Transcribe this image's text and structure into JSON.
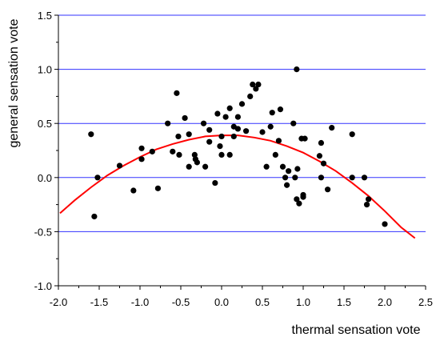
{
  "chart_data": {
    "type": "scatter",
    "title": "",
    "xlabel": "thermal sensation vote",
    "ylabel": "general sensation vote",
    "xlim": [
      -2.0,
      2.5
    ],
    "ylim": [
      -1.0,
      1.5
    ],
    "x_ticks": [
      "-2.0",
      "-1.5",
      "-1.0",
      "-0.5",
      "0.0",
      "0.5",
      "1.0",
      "1.5",
      "2.0",
      "2.5"
    ],
    "y_ticks": [
      "1.5",
      "1.0",
      "0.5",
      "0.0",
      "-0.5",
      "-1.0"
    ],
    "grid_horizontal": [
      1.5,
      1.0,
      0.5,
      0.0,
      -0.5
    ],
    "colors": {
      "points": "#000000",
      "fit_line": "#ff0000",
      "grid": "#3333ff",
      "axis": "#000000"
    },
    "series": [
      {
        "type": "scatter",
        "points": [
          [
            -1.6,
            0.4
          ],
          [
            -1.56,
            -0.36
          ],
          [
            -1.52,
            0.0
          ],
          [
            -1.25,
            0.11
          ],
          [
            -1.08,
            -0.12
          ],
          [
            -0.98,
            0.27
          ],
          [
            -0.98,
            0.17
          ],
          [
            -0.85,
            0.24
          ],
          [
            -0.78,
            -0.1
          ],
          [
            -0.66,
            0.5
          ],
          [
            -0.6,
            0.24
          ],
          [
            -0.55,
            0.78
          ],
          [
            -0.52,
            0.21
          ],
          [
            -0.53,
            0.38
          ],
          [
            -0.45,
            0.55
          ],
          [
            -0.4,
            0.1
          ],
          [
            -0.4,
            0.4
          ],
          [
            -0.33,
            0.21
          ],
          [
            -0.32,
            0.17
          ],
          [
            -0.3,
            0.14
          ],
          [
            -0.22,
            0.5
          ],
          [
            -0.2,
            0.1
          ],
          [
            -0.15,
            0.44
          ],
          [
            -0.15,
            0.33
          ],
          [
            -0.08,
            -0.05
          ],
          [
            -0.05,
            0.59
          ],
          [
            -0.02,
            0.29
          ],
          [
            0.0,
            0.21
          ],
          [
            0.0,
            0.38
          ],
          [
            0.05,
            0.56
          ],
          [
            0.1,
            0.64
          ],
          [
            0.1,
            0.21
          ],
          [
            0.15,
            0.47
          ],
          [
            0.15,
            0.38
          ],
          [
            0.2,
            0.56
          ],
          [
            0.2,
            0.45
          ],
          [
            0.25,
            0.68
          ],
          [
            0.3,
            0.43
          ],
          [
            0.35,
            0.75
          ],
          [
            0.38,
            0.86
          ],
          [
            0.42,
            0.82
          ],
          [
            0.45,
            0.86
          ],
          [
            0.5,
            0.42
          ],
          [
            0.55,
            0.1
          ],
          [
            0.6,
            0.47
          ],
          [
            0.62,
            0.6
          ],
          [
            0.66,
            0.21
          ],
          [
            0.7,
            0.34
          ],
          [
            0.72,
            0.63
          ],
          [
            0.75,
            0.1
          ],
          [
            0.78,
            0.0
          ],
          [
            0.8,
            -0.07
          ],
          [
            0.82,
            0.06
          ],
          [
            0.88,
            0.5
          ],
          [
            0.9,
            0.0
          ],
          [
            0.92,
            1.0
          ],
          [
            0.92,
            -0.2
          ],
          [
            0.93,
            0.08
          ],
          [
            0.95,
            -0.24
          ],
          [
            0.98,
            0.36
          ],
          [
            1.0,
            -0.16
          ],
          [
            1.0,
            -0.18
          ],
          [
            1.02,
            0.36
          ],
          [
            1.2,
            0.2
          ],
          [
            1.22,
            0.32
          ],
          [
            1.22,
            0.0
          ],
          [
            1.25,
            0.13
          ],
          [
            1.3,
            -0.11
          ],
          [
            1.35,
            0.46
          ],
          [
            1.6,
            0.4
          ],
          [
            1.6,
            0.0
          ],
          [
            1.75,
            0.0
          ],
          [
            1.78,
            -0.25
          ],
          [
            1.8,
            -0.2
          ],
          [
            2.0,
            -0.43
          ]
        ]
      },
      {
        "type": "line",
        "points": [
          [
            -1.98,
            -0.33
          ],
          [
            -1.8,
            -0.21
          ],
          [
            -1.6,
            -0.09
          ],
          [
            -1.4,
            0.02
          ],
          [
            -1.2,
            0.11
          ],
          [
            -1.0,
            0.19
          ],
          [
            -0.8,
            0.26
          ],
          [
            -0.6,
            0.31
          ],
          [
            -0.4,
            0.35
          ],
          [
            -0.2,
            0.38
          ],
          [
            0.0,
            0.39
          ],
          [
            0.2,
            0.39
          ],
          [
            0.4,
            0.37
          ],
          [
            0.6,
            0.34
          ],
          [
            0.8,
            0.29
          ],
          [
            1.0,
            0.23
          ],
          [
            1.2,
            0.15
          ],
          [
            1.4,
            0.06
          ],
          [
            1.6,
            -0.05
          ],
          [
            1.8,
            -0.17
          ],
          [
            2.0,
            -0.31
          ],
          [
            2.2,
            -0.46
          ],
          [
            2.37,
            -0.56
          ]
        ]
      }
    ]
  }
}
